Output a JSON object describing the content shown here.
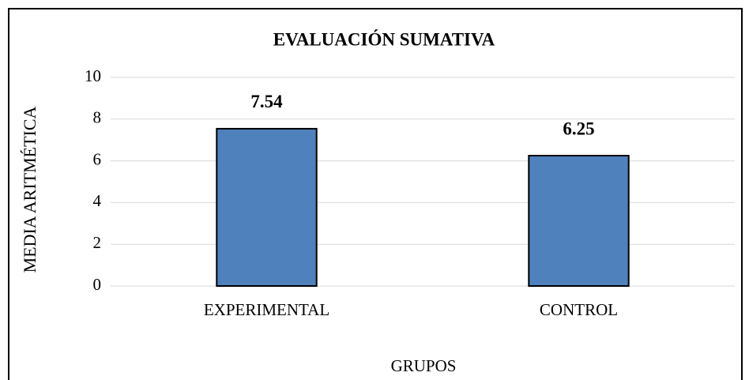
{
  "chart_data": {
    "type": "bar",
    "title": "EVALUACIÓN SUMATIVA",
    "x_label": "GRUPOS",
    "y_label": "MEDIA ARITMÉTICA",
    "categories": [
      "EXPERIMENTAL",
      "CONTROL"
    ],
    "values": [
      7.54,
      6.25
    ],
    "color": "#4f81bd",
    "ylim": [
      0,
      10
    ],
    "yticks": [
      0,
      2,
      4,
      6,
      8,
      10
    ],
    "grid": true
  }
}
